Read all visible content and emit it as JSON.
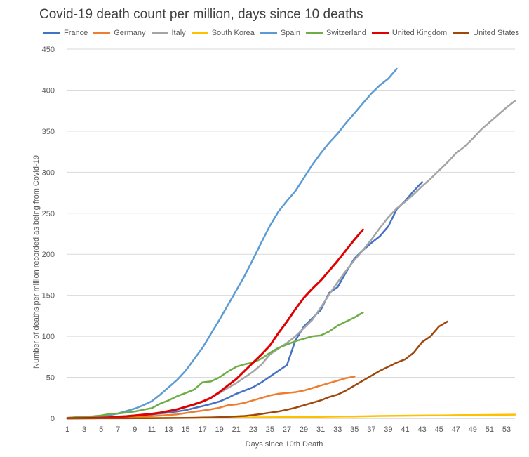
{
  "chart_data": {
    "type": "line",
    "title": "Covid-19 death count per million, days since 10 deaths",
    "xlabel": "Days since 10th Death",
    "ylabel": "Number  of deaths per  million recorded as being from Covid-19",
    "x_ticks": [
      1,
      3,
      5,
      7,
      9,
      11,
      13,
      15,
      17,
      19,
      21,
      23,
      25,
      27,
      29,
      31,
      33,
      35,
      37,
      39,
      41,
      43,
      45,
      47,
      49,
      51,
      53
    ],
    "xlim": [
      1,
      54
    ],
    "ylim": [
      0,
      450
    ],
    "y_ticks": [
      0,
      50,
      100,
      150,
      200,
      250,
      300,
      350,
      400,
      450
    ],
    "grid": "horizontal",
    "legend_position": "top",
    "series": [
      {
        "name": "France",
        "color": "#4472C4",
        "x_start": 1,
        "values": [
          0.2,
          0.4,
          0.6,
          0.9,
          1.3,
          1.7,
          2.3,
          2.8,
          3.5,
          4.2,
          5.0,
          6.0,
          7.0,
          8.5,
          10.0,
          12.5,
          15.0,
          17.5,
          20.5,
          25.0,
          30.0,
          34.0,
          38.0,
          44.0,
          51.0,
          58.0,
          65.0,
          95.0,
          112.0,
          122.0,
          132.0,
          153.0,
          160.0,
          178.0,
          195.0,
          205.0,
          214.0,
          222.0,
          234.0,
          255.0,
          265.0,
          277.0,
          288.0
        ]
      },
      {
        "name": "Germany",
        "color": "#ED7D31",
        "x_start": 1,
        "values": [
          0.1,
          0.2,
          0.3,
          0.4,
          0.6,
          0.8,
          1.0,
          1.3,
          1.7,
          2.2,
          2.8,
          3.4,
          4.2,
          5.0,
          6.5,
          8.0,
          9.5,
          11.0,
          13.0,
          16.0,
          17.0,
          19.0,
          22.0,
          25.0,
          28.0,
          30.0,
          31.0,
          32.0,
          34.0,
          37.0,
          40.0,
          43.0,
          46.0,
          49.0,
          51.0
        ]
      },
      {
        "name": "Italy",
        "color": "#A5A5A5",
        "x_start": 1,
        "values": [
          0.2,
          0.4,
          0.7,
          1.0,
          1.3,
          1.7,
          2.2,
          2.8,
          3.6,
          4.6,
          5.8,
          7.2,
          9.0,
          11.0,
          13.5,
          16.5,
          20.0,
          25.0,
          31.0,
          37.0,
          43.0,
          50.0,
          57.0,
          66.0,
          78.0,
          85.0,
          92.0,
          100.0,
          110.0,
          120.0,
          135.0,
          151.0,
          166.0,
          180.0,
          193.0,
          205.0,
          218.0,
          232.0,
          245.0,
          256.0,
          264.0,
          273.0,
          283.0,
          292.0,
          302.0,
          312.0,
          323.0,
          331.0,
          341.0,
          352.0,
          361.0,
          370.0,
          379.0,
          387.0
        ]
      },
      {
        "name": "South Korea",
        "color": "#FFC000",
        "x_start": 1,
        "values": [
          0.2,
          0.2,
          0.3,
          0.3,
          0.3,
          0.4,
          0.4,
          0.4,
          0.5,
          0.5,
          0.5,
          0.6,
          0.6,
          0.7,
          0.7,
          0.8,
          0.8,
          0.9,
          0.9,
          1.0,
          1.0,
          1.1,
          1.2,
          1.3,
          1.4,
          1.5,
          1.6,
          1.7,
          1.8,
          1.9,
          2.0,
          2.1,
          2.2,
          2.3,
          2.4,
          2.6,
          2.8,
          3.0,
          3.1,
          3.2,
          3.3,
          3.4,
          3.5,
          3.6,
          3.7,
          3.8,
          3.9,
          4.0,
          4.1,
          4.2,
          4.3,
          4.4,
          4.5,
          4.6
        ]
      },
      {
        "name": "Spain",
        "color": "#5B9BD5",
        "x_start": 1,
        "values": [
          0.3,
          0.6,
          1.0,
          1.6,
          2.5,
          4.0,
          6.0,
          9.0,
          12.0,
          16.0,
          21.0,
          29.0,
          38.0,
          47.0,
          58.0,
          72.0,
          86.0,
          103.0,
          120.0,
          138.0,
          156.0,
          174.0,
          194.0,
          215.0,
          235.0,
          252.0,
          265.0,
          277.0,
          293.0,
          309.0,
          323.0,
          336.0,
          347.0,
          360.0,
          372.0,
          384.0,
          396.0,
          406.0,
          414.0,
          426.0
        ]
      },
      {
        "name": "Switzerland",
        "color": "#70AD47",
        "x_start": 1,
        "values": [
          0.8,
          1.5,
          2.0,
          2.6,
          3.5,
          5.5,
          6.0,
          7.0,
          8.5,
          10.5,
          12.5,
          18.0,
          22.0,
          27.0,
          31.0,
          35.0,
          44.0,
          45.0,
          50.0,
          57.0,
          63.0,
          66.0,
          68.0,
          73.0,
          80.0,
          86.0,
          90.0,
          94.0,
          97.0,
          100.0,
          101.0,
          106.0,
          113.0,
          118.0,
          123.0,
          129.0
        ]
      },
      {
        "name": "United Kingdom",
        "color": "#E00000",
        "x_start": 1,
        "values": [
          0.1,
          0.2,
          0.3,
          0.5,
          0.8,
          1.2,
          1.8,
          2.6,
          3.5,
          4.5,
          5.5,
          7.0,
          9.0,
          11.0,
          14.0,
          17.0,
          20.5,
          25.0,
          32.0,
          40.0,
          48.0,
          58.0,
          68.0,
          78.0,
          89.0,
          104.0,
          118.0,
          133.0,
          147.0,
          158.0,
          168.0,
          180.0,
          192.0,
          205.0,
          218.0,
          230.0
        ]
      },
      {
        "name": "United States",
        "color": "#9E480E",
        "x_start": 1,
        "values": [
          0.01,
          0.02,
          0.03,
          0.04,
          0.05,
          0.07,
          0.09,
          0.12,
          0.15,
          0.2,
          0.25,
          0.3,
          0.4,
          0.5,
          0.6,
          0.8,
          1.0,
          1.2,
          1.5,
          2.0,
          2.5,
          3.0,
          4.0,
          5.5,
          7.0,
          8.5,
          10.5,
          13.0,
          16.0,
          19.0,
          22.0,
          26.0,
          29.0,
          34.0,
          40.0,
          46.0,
          52.0,
          58.0,
          63.0,
          68.0,
          72.0,
          80.0,
          93.0,
          100.0,
          112.0,
          118.0
        ]
      }
    ]
  }
}
